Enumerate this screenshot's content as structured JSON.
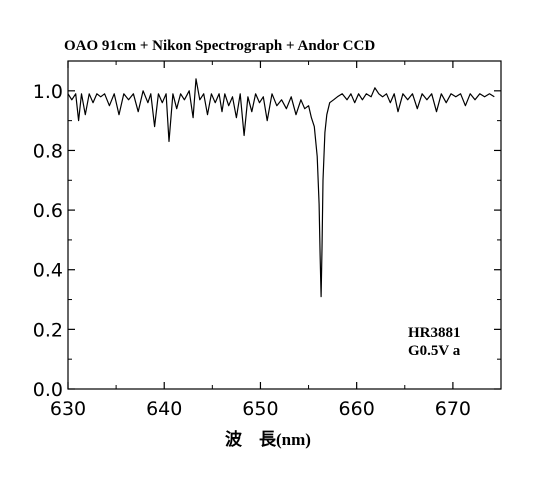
{
  "chart_data": {
    "type": "line",
    "title": "OAO 91cm + Nikon Spectrograph + Andor CCD",
    "xlabel": "波　長(nm)",
    "ylabel": "",
    "xlim": [
      630,
      675
    ],
    "ylim": [
      0.0,
      1.1
    ],
    "x_ticks": [
      "630",
      "640",
      "650",
      "660",
      "670"
    ],
    "y_ticks": [
      "0.0",
      "0.2",
      "0.4",
      "0.6",
      "0.8",
      "1.0"
    ],
    "grid": false,
    "annotations": [
      "HR3881",
      "G0.5V a"
    ],
    "series": [
      {
        "x": [
          630.0,
          630.4,
          630.8,
          631.1,
          631.4,
          631.8,
          632.2,
          632.6,
          633.0,
          633.4,
          633.8,
          634.3,
          634.8,
          635.3,
          635.8,
          636.3,
          636.8,
          637.3,
          637.8,
          638.3,
          638.6,
          639.0,
          639.4,
          639.8,
          640.2,
          640.5,
          640.9,
          641.3,
          641.7,
          642.1,
          642.6,
          643.0,
          643.3,
          643.7,
          644.1,
          644.5,
          644.9,
          645.3,
          645.7,
          646.0,
          646.3,
          646.7,
          647.1,
          647.5,
          647.9,
          648.3,
          648.7,
          649.1,
          649.5,
          649.9,
          650.3,
          650.7,
          651.2,
          651.7,
          652.2,
          652.7,
          653.2,
          653.7,
          654.2,
          654.6,
          655.0,
          655.3,
          655.6,
          655.9,
          656.1,
          656.2,
          656.3,
          656.4,
          656.5,
          656.7,
          656.9,
          657.2,
          657.6,
          658.0,
          658.5,
          659.0,
          659.4,
          659.8,
          660.2,
          660.6,
          661.0,
          661.5,
          661.9,
          662.3,
          662.7,
          663.1,
          663.5,
          663.9,
          664.3,
          664.8,
          665.3,
          665.8,
          666.3,
          666.8,
          667.3,
          667.8,
          668.3,
          668.8,
          669.3,
          669.8,
          670.3,
          670.8,
          671.3,
          671.8,
          672.3,
          672.8,
          673.3,
          673.8,
          674.3
        ],
        "y": [
          0.99,
          0.97,
          0.99,
          0.9,
          0.99,
          0.92,
          0.99,
          0.96,
          0.99,
          0.98,
          0.99,
          0.95,
          0.99,
          0.92,
          0.99,
          0.97,
          0.99,
          0.93,
          1.0,
          0.96,
          0.99,
          0.88,
          0.99,
          0.96,
          0.99,
          0.83,
          0.99,
          0.94,
          0.99,
          0.97,
          1.0,
          0.91,
          1.04,
          0.97,
          0.99,
          0.92,
          0.99,
          0.96,
          0.99,
          0.93,
          0.99,
          0.95,
          0.98,
          0.91,
          0.99,
          0.85,
          0.98,
          0.93,
          0.99,
          0.96,
          0.98,
          0.9,
          0.99,
          0.95,
          0.97,
          0.94,
          0.98,
          0.92,
          0.97,
          0.94,
          0.95,
          0.91,
          0.88,
          0.78,
          0.62,
          0.45,
          0.31,
          0.47,
          0.7,
          0.86,
          0.92,
          0.96,
          0.97,
          0.98,
          0.99,
          0.97,
          0.99,
          0.96,
          0.99,
          0.97,
          0.99,
          0.98,
          1.01,
          0.99,
          0.98,
          0.99,
          0.96,
          0.99,
          0.93,
          0.99,
          0.97,
          0.99,
          0.94,
          0.99,
          0.97,
          0.99,
          0.93,
          0.99,
          0.96,
          0.99,
          0.98,
          0.99,
          0.95,
          0.99,
          0.97,
          0.99,
          0.98,
          0.99,
          0.98
        ]
      }
    ]
  }
}
